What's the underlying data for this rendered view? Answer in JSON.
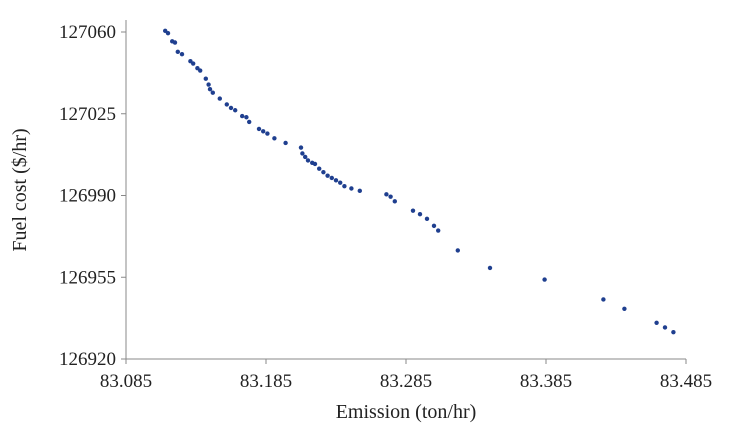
{
  "chart_data": {
    "type": "scatter",
    "xlabel": "Emission (ton/hr)",
    "ylabel": "Fuel cost ($/hr)",
    "xlim": [
      83.085,
      83.485
    ],
    "ylim": [
      126920,
      127060
    ],
    "x_ticks": [
      "83.085",
      "83.185",
      "83.285",
      "83.385",
      "83.485"
    ],
    "y_ticks": [
      "127060",
      "127025",
      "126990",
      "126955",
      "126920"
    ],
    "grid": false,
    "marker_color": "#1f3f8f",
    "series": [
      {
        "points": [
          [
            83.113,
            127060.5
          ],
          [
            83.115,
            127059.5
          ],
          [
            83.118,
            127056.0
          ],
          [
            83.12,
            127055.5
          ],
          [
            83.122,
            127051.5
          ],
          [
            83.125,
            127050.5
          ],
          [
            83.131,
            127047.5
          ],
          [
            83.133,
            127046.5
          ],
          [
            83.136,
            127044.5
          ],
          [
            83.138,
            127043.5
          ],
          [
            83.142,
            127040.0
          ],
          [
            83.144,
            127037.5
          ],
          [
            83.145,
            127035.5
          ],
          [
            83.147,
            127034.0
          ],
          [
            83.152,
            127031.5
          ],
          [
            83.157,
            127029.0
          ],
          [
            83.16,
            127027.5
          ],
          [
            83.163,
            127026.5
          ],
          [
            83.168,
            127024.0
          ],
          [
            83.171,
            127023.5
          ],
          [
            83.173,
            127021.5
          ],
          [
            83.18,
            127018.5
          ],
          [
            83.183,
            127017.5
          ],
          [
            83.186,
            127016.5
          ],
          [
            83.191,
            127014.5
          ],
          [
            83.199,
            127012.5
          ],
          [
            83.21,
            127010.5
          ],
          [
            83.211,
            127008.0
          ],
          [
            83.213,
            127006.5
          ],
          [
            83.215,
            127005.0
          ],
          [
            83.218,
            127004.0
          ],
          [
            83.22,
            127003.5
          ],
          [
            83.223,
            127001.5
          ],
          [
            83.226,
            127000.0
          ],
          [
            83.229,
            126998.5
          ],
          [
            83.232,
            126997.5
          ],
          [
            83.235,
            126996.5
          ],
          [
            83.238,
            126995.5
          ],
          [
            83.241,
            126994.0
          ],
          [
            83.246,
            126993.0
          ],
          [
            83.252,
            126992.0
          ],
          [
            83.271,
            126990.5
          ],
          [
            83.274,
            126989.5
          ],
          [
            83.277,
            126987.5
          ],
          [
            83.29,
            126983.5
          ],
          [
            83.295,
            126982.0
          ],
          [
            83.3,
            126980.0
          ],
          [
            83.305,
            126977.0
          ],
          [
            83.308,
            126975.0
          ],
          [
            83.322,
            126966.5
          ],
          [
            83.345,
            126959.0
          ],
          [
            83.384,
            126954.0
          ],
          [
            83.426,
            126945.5
          ],
          [
            83.441,
            126941.5
          ],
          [
            83.464,
            126935.5
          ],
          [
            83.47,
            126933.5
          ],
          [
            83.476,
            126931.5
          ]
        ]
      }
    ]
  }
}
